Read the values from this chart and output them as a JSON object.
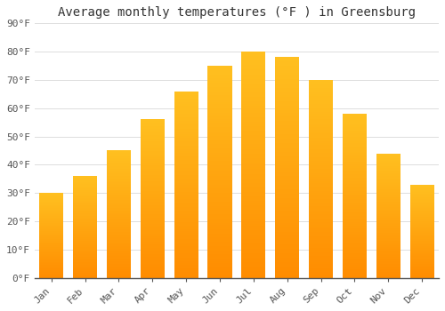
{
  "title": "Average monthly temperatures (°F ) in Greensburg",
  "months": [
    "Jan",
    "Feb",
    "Mar",
    "Apr",
    "May",
    "Jun",
    "Jul",
    "Aug",
    "Sep",
    "Oct",
    "Nov",
    "Dec"
  ],
  "values": [
    30,
    36,
    45,
    56,
    66,
    75,
    80,
    78,
    70,
    58,
    44,
    33
  ],
  "bar_color_top": "#FFC020",
  "bar_color_bottom": "#FF8C00",
  "background_color": "#FFFFFF",
  "grid_color": "#DDDDDD",
  "ylim": [
    0,
    90
  ],
  "yticks": [
    0,
    10,
    20,
    30,
    40,
    50,
    60,
    70,
    80,
    90
  ],
  "title_fontsize": 10,
  "tick_fontsize": 8,
  "font_family": "monospace"
}
